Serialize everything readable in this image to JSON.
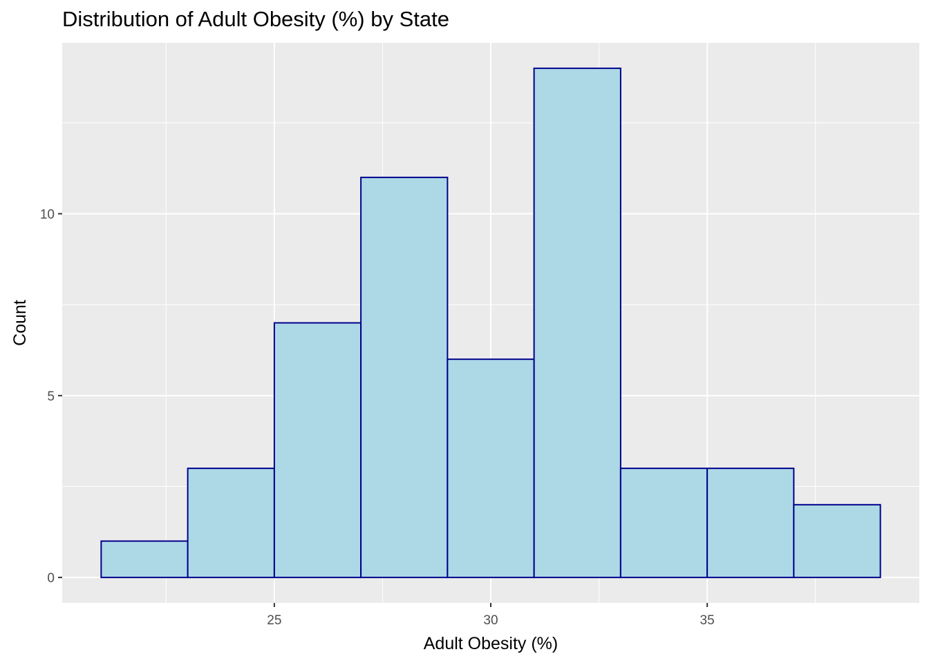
{
  "chart_data": {
    "type": "bar",
    "title": "Distribution of Adult Obesity (%) by State",
    "xlabel": "Adult Obesity (%)",
    "ylabel": "Count",
    "bin_edges": [
      21,
      23,
      25,
      27,
      29,
      31,
      33,
      35,
      37,
      39
    ],
    "values": [
      1,
      3,
      7,
      11,
      6,
      14,
      3,
      3,
      2
    ],
    "xlim": [
      20.1,
      39.9
    ],
    "ylim": [
      -0.7,
      14.7
    ],
    "x_ticks": [
      25,
      30,
      35
    ],
    "y_ticks": [
      0,
      5,
      10
    ],
    "grid": true,
    "colors": {
      "bar_fill": "#add8e6",
      "bar_stroke": "#00008b",
      "panel": "#ebebeb",
      "grid": "#ffffff"
    }
  }
}
